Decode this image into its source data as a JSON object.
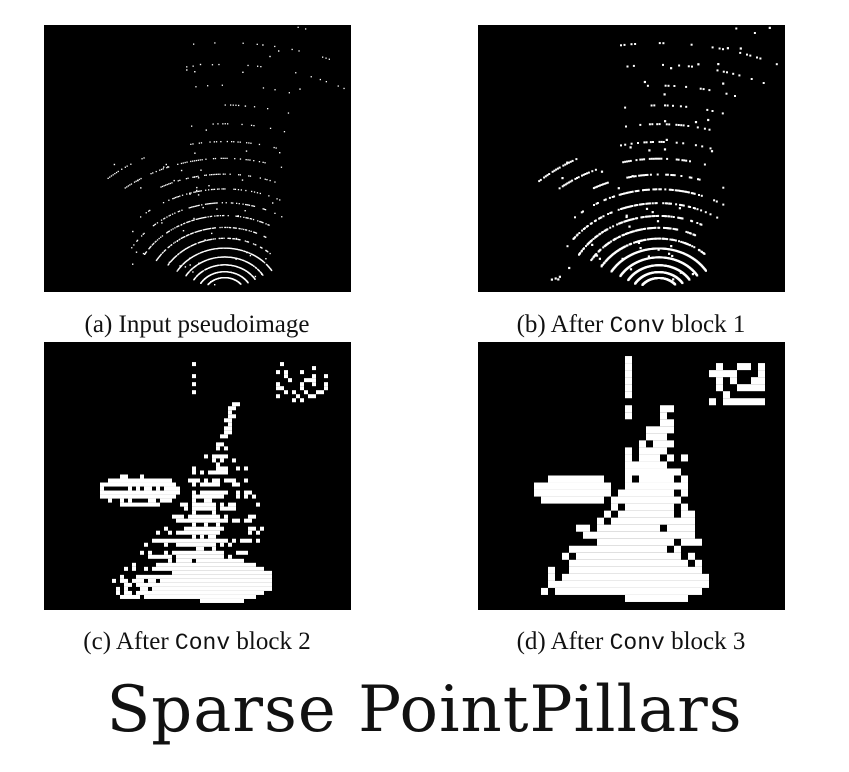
{
  "figure": {
    "title": "Sparse PointPillars",
    "panels": [
      {
        "id": "a",
        "caption_prefix": "(a) Input pseudoimage",
        "caption_code": "",
        "caption_suffix": "",
        "stage": 0
      },
      {
        "id": "b",
        "caption_prefix": "(b) After ",
        "caption_code": "Conv",
        "caption_suffix": " block 1",
        "stage": 1
      },
      {
        "id": "c",
        "caption_prefix": "(c) After ",
        "caption_code": "Conv",
        "caption_suffix": " block 2",
        "stage": 2
      },
      {
        "id": "d",
        "caption_prefix": "(d) After ",
        "caption_code": "Conv",
        "caption_suffix": " block 3",
        "stage": 3
      }
    ],
    "colors": {
      "background": "#000000",
      "points": "#ffffff"
    }
  }
}
